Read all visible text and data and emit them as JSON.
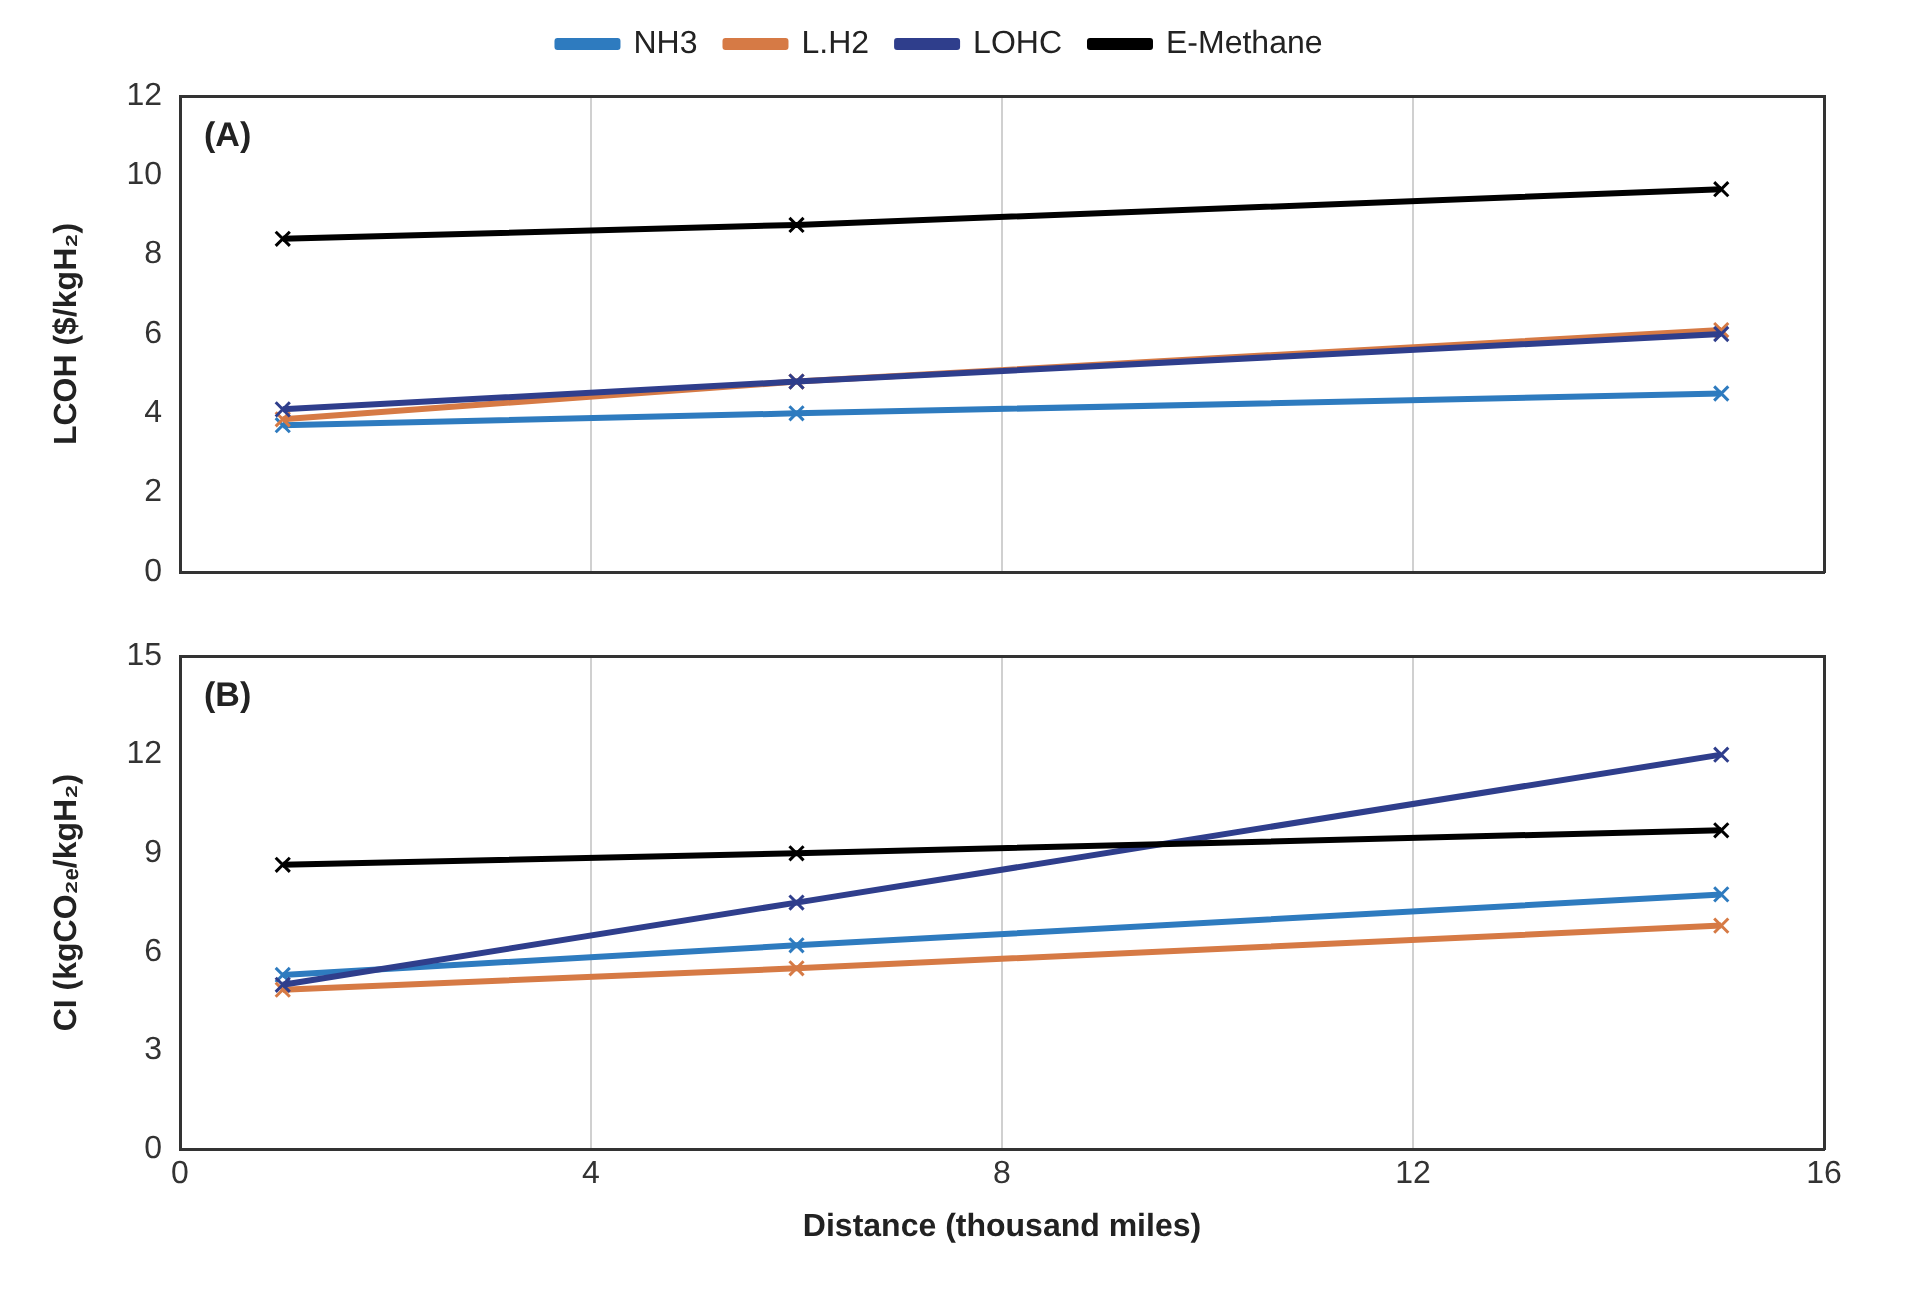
{
  "chart_data": [
    {
      "type": "line",
      "xlabel": null,
      "ylabel": "LCOH ($/kgH₂)",
      "annotations": [
        "(A)"
      ],
      "x": [
        1,
        6,
        15
      ],
      "xlim": [
        0,
        16
      ],
      "xticks": [
        0,
        4,
        8,
        12,
        16
      ],
      "ylim": [
        0,
        12
      ],
      "yticks": [
        0,
        2,
        4,
        6,
        8,
        10,
        12
      ],
      "grid": "x",
      "legend": "top",
      "tick_labels": "y",
      "marker": "cross",
      "line_style": "solid",
      "series": [
        {
          "name": "NH3",
          "color": "#2e7bbf",
          "values": [
            3.7,
            4.0,
            4.5
          ]
        },
        {
          "name": "L.H2",
          "color": "#d67a45",
          "values": [
            3.85,
            4.8,
            6.1
          ]
        },
        {
          "name": "LOHC",
          "color": "#2f3e8c",
          "values": [
            4.1,
            4.8,
            6.0
          ]
        },
        {
          "name": "E-Methane",
          "color": "#000000",
          "values": [
            8.4,
            8.75,
            9.65
          ]
        }
      ]
    },
    {
      "type": "line",
      "xlabel": "Distance (thousand miles)",
      "ylabel": "CI (kgCO₂ₑ/kgH₂)",
      "annotations": [
        "(B)"
      ],
      "x": [
        1,
        6,
        15
      ],
      "xlim": [
        0,
        16
      ],
      "xticks": [
        0,
        4,
        8,
        12,
        16
      ],
      "ylim": [
        0,
        15
      ],
      "yticks": [
        0,
        3,
        6,
        9,
        12,
        15
      ],
      "grid": "x",
      "marker": "cross",
      "line_style": "solid",
      "series": [
        {
          "color": "#2e7bbf",
          "values": [
            5.3,
            6.2,
            7.75
          ]
        },
        {
          "color": "#d67a45",
          "values": [
            4.85,
            5.5,
            6.8
          ]
        },
        {
          "color": "#2f3e8c",
          "values": [
            5.0,
            7.5,
            12.0
          ]
        },
        {
          "color": "#000000",
          "values": [
            8.65,
            9.0,
            9.7
          ]
        }
      ]
    }
  ]
}
